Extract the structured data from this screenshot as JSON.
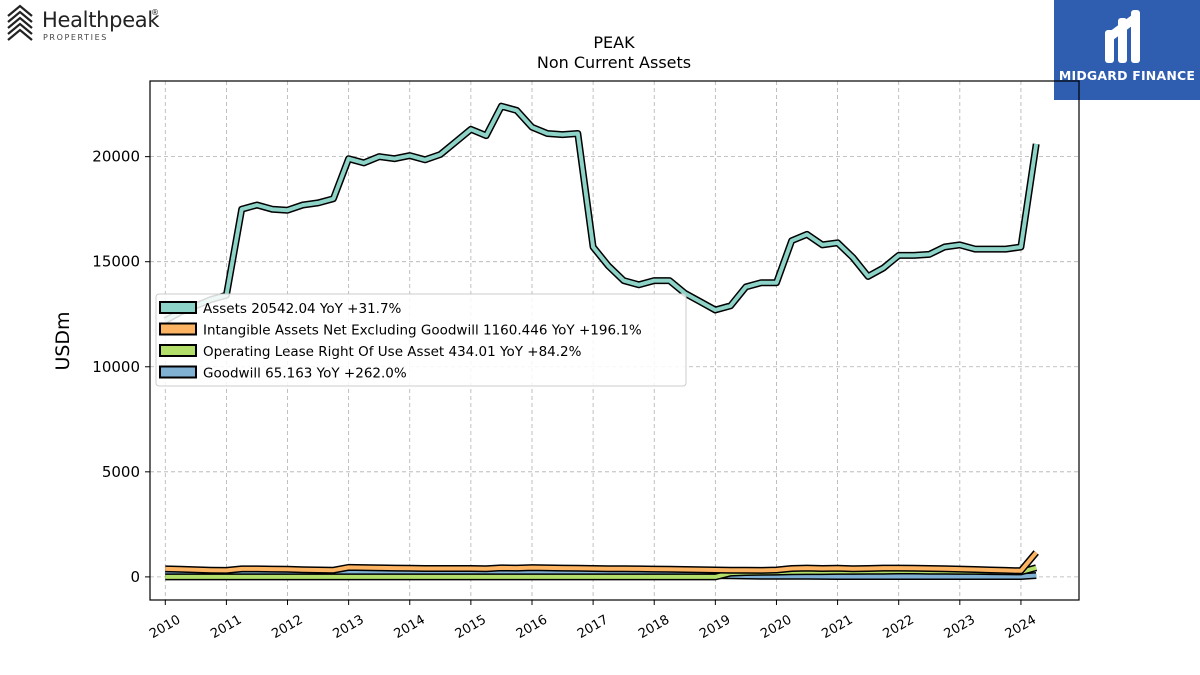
{
  "logos": {
    "left_brand": "Healthpeak",
    "left_mark": "®",
    "left_sub": "PROPERTIES",
    "right_name": "MIDGARD FINANCE",
    "right_color": "#2f5db0"
  },
  "chart_data": {
    "type": "area",
    "title": "PEAK",
    "subtitle": "Non Current  Assets",
    "ylabel": "USDm",
    "xlabel": "",
    "xlim": [
      2009.75,
      2024.95
    ],
    "ylim": [
      -1100,
      23600
    ],
    "yticks": [
      0,
      5000,
      10000,
      15000,
      20000
    ],
    "xticks": [
      2010,
      2011,
      2012,
      2013,
      2014,
      2015,
      2016,
      2017,
      2018,
      2019,
      2020,
      2021,
      2022,
      2023,
      2024
    ],
    "grid": true,
    "legend_position": "center-left",
    "x": [
      2010.0,
      2010.25,
      2010.5,
      2010.75,
      2011.0,
      2011.25,
      2011.5,
      2011.75,
      2012.0,
      2012.25,
      2012.5,
      2012.75,
      2013.0,
      2013.25,
      2013.5,
      2013.75,
      2014.0,
      2014.25,
      2014.5,
      2014.75,
      2015.0,
      2015.25,
      2015.5,
      2015.75,
      2016.0,
      2016.25,
      2016.5,
      2016.75,
      2017.0,
      2017.25,
      2017.5,
      2017.75,
      2018.0,
      2018.25,
      2018.5,
      2018.75,
      2019.0,
      2019.25,
      2019.5,
      2019.75,
      2020.0,
      2020.25,
      2020.5,
      2020.75,
      2021.0,
      2021.25,
      2021.5,
      2021.75,
      2022.0,
      2022.25,
      2022.5,
      2022.75,
      2023.0,
      2023.25,
      2023.5,
      2023.75,
      2024.0,
      2024.25
    ],
    "series": [
      {
        "name": "Assets",
        "legend": "Assets  20542.04 YoY +31.7%",
        "color": "#8dd3c7",
        "values": [
          12200,
          12600,
          12900,
          13200,
          13400,
          17500,
          17700,
          17500,
          17450,
          17700,
          17800,
          18000,
          19900,
          19700,
          20000,
          19900,
          20050,
          19850,
          20100,
          20700,
          21300,
          21000,
          22400,
          22200,
          21400,
          21100,
          21050,
          21100,
          15700,
          14800,
          14100,
          13900,
          14100,
          14100,
          13500,
          13100,
          12700,
          12900,
          13800,
          14000,
          14000,
          16000,
          16300,
          15800,
          15900,
          15200,
          14300,
          14700,
          15300,
          15300,
          15350,
          15700,
          15800,
          15600,
          15600,
          15600,
          15700,
          20600
        ]
      },
      {
        "name": "Intangible Assets Net Excluding Goodwill",
        "legend": "Intangible Assets Net Excluding Goodwill  1160.446 YoY +196.1%",
        "color": "#fdb462",
        "values": [
          380,
          360,
          340,
          320,
          310,
          380,
          380,
          370,
          360,
          340,
          330,
          320,
          450,
          440,
          430,
          420,
          410,
          400,
          400,
          400,
          400,
          390,
          430,
          420,
          440,
          430,
          420,
          410,
          400,
          390,
          390,
          380,
          370,
          360,
          350,
          340,
          330,
          320,
          320,
          310,
          330,
          400,
          420,
          400,
          410,
          390,
          400,
          420,
          420,
          410,
          400,
          390,
          370,
          350,
          330,
          310,
          290,
          1160
        ]
      },
      {
        "name": "Operating Lease Right Of Use Asset",
        "legend": "Operating Lease Right Of Use Asset  434.01 YoY +84.2%",
        "color": "#b3de69",
        "values": [
          0,
          0,
          0,
          0,
          0,
          0,
          0,
          0,
          0,
          0,
          0,
          0,
          0,
          0,
          0,
          0,
          0,
          0,
          0,
          0,
          0,
          0,
          0,
          0,
          0,
          0,
          0,
          0,
          0,
          0,
          0,
          0,
          0,
          0,
          0,
          0,
          0,
          180,
          210,
          220,
          230,
          240,
          250,
          250,
          260,
          260,
          270,
          270,
          280,
          280,
          270,
          270,
          260,
          260,
          250,
          240,
          235,
          434
        ]
      },
      {
        "name": "Goodwill",
        "legend": "Goodwill  65.163 YoY +262.0%",
        "color": "#80b1d3",
        "values": [
          200,
          200,
          200,
          200,
          200,
          200,
          200,
          200,
          200,
          200,
          200,
          200,
          200,
          200,
          200,
          200,
          200,
          200,
          200,
          200,
          200,
          200,
          200,
          200,
          200,
          200,
          200,
          200,
          180,
          170,
          160,
          150,
          150,
          140,
          130,
          100,
          60,
          50,
          40,
          30,
          30,
          30,
          30,
          25,
          20,
          20,
          20,
          20,
          20,
          20,
          20,
          20,
          20,
          20,
          20,
          18,
          18,
          65
        ]
      }
    ]
  }
}
